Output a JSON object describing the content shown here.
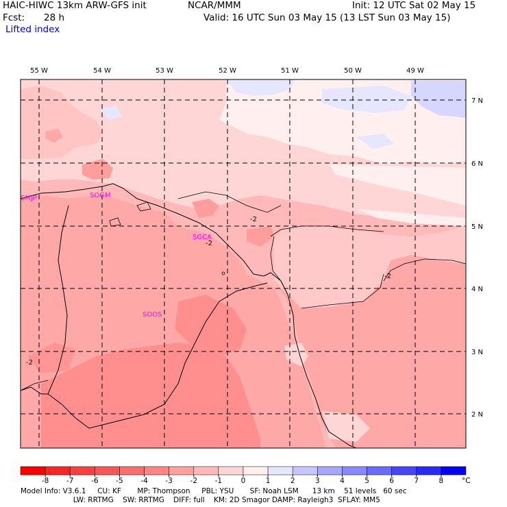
{
  "header": {
    "model_line": "HAIC-HIWC 13km ARW-GFS init",
    "org": "NCAR/MMM",
    "init": "Init: 12 UTC Sat 02 May 15",
    "fcst_label": "Fcst:",
    "fcst_value": "28 h",
    "valid": "Valid: 16 UTC Sun 03 May 15 (13 LST Sun 03 May 15)",
    "field": "Lifted index"
  },
  "map": {
    "longitude_labels": [
      "55 W",
      "54 W",
      "53 W",
      "52 W",
      "51 W",
      "50 W",
      "49 W"
    ],
    "latitude_labels": [
      "7 N",
      "6 N",
      "5 N",
      "4 N",
      "3 N",
      "2 N"
    ],
    "stations": [
      "SMJP",
      "SOGM",
      "SGCA",
      "SOOS"
    ],
    "contour_labels": [
      "-2",
      "-2",
      "-2",
      "-2"
    ]
  },
  "colorbar": {
    "ticks": [
      "-8",
      "-7",
      "-6",
      "-5",
      "-4",
      "-3",
      "-2",
      "-1",
      "0",
      "1",
      "2",
      "3",
      "4",
      "5",
      "6",
      "7",
      "8"
    ],
    "unit": "°C",
    "colors": [
      "#ff0000",
      "#ff2424",
      "#ff3f3f",
      "#ff5555",
      "#ff6d6d",
      "#ff8585",
      "#ffa0a0",
      "#ffb9b9",
      "#ffd6d6",
      "#ffefef",
      "#e6e6ff",
      "#c7c7ff",
      "#a6a6ff",
      "#8888ff",
      "#6a6aff",
      "#4545ff",
      "#2a2aff",
      "#0000ff"
    ]
  },
  "footer": {
    "line1": "Model Info: V3.6.1     CU: KF       MP: Thompson     PBL: YSU       SF: Noah LSM      13 km    51 levels   60 sec",
    "line2": "                       LW: RRTMG    SW: RRTMG    DIFF: full    KM: 2D Smagor DAMP: Rayleigh3  SFLAY: MM5"
  }
}
